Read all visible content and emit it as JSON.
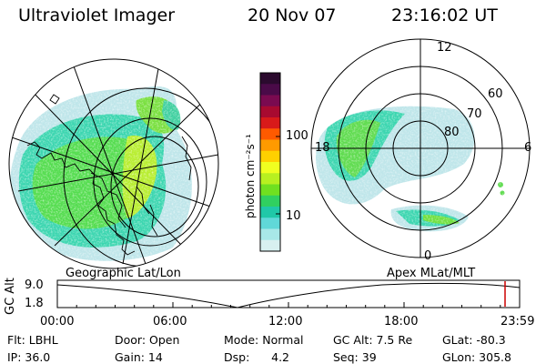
{
  "header": {
    "instrument": "Ultraviolet Imager",
    "date": "20 Nov 07",
    "time": "23:16:02 UT"
  },
  "colorbar": {
    "unit_label": "photon cm⁻²s⁻¹",
    "ticks": [
      "100",
      "10"
    ],
    "colors": [
      "#2b0a2e",
      "#4a0a48",
      "#7a0a50",
      "#a80a30",
      "#d81a1a",
      "#ff5a00",
      "#ff9a00",
      "#ffd000",
      "#f0ff20",
      "#b8f020",
      "#70e020",
      "#30d060",
      "#20c8a8",
      "#60d8d8",
      "#a8e8e8",
      "#d8f0f0"
    ]
  },
  "left_panel": {
    "caption": "Geographic Lat/Lon"
  },
  "right_panel": {
    "caption": "Apex MLat/MLT",
    "mlt_labels": {
      "top": "12",
      "left": "18",
      "right": "6",
      "bottom": "0"
    },
    "lat_labels": [
      "60",
      "70",
      "80"
    ]
  },
  "alt_plot": {
    "ylabel": "GC Alt",
    "yticks": [
      "9.0",
      "1.8"
    ],
    "xticks": [
      "00:00",
      "06:00",
      "12:00",
      "18:00",
      "23:59"
    ],
    "marker_color": "#cc0000"
  },
  "info": {
    "flt": "Flt: LBHL",
    "door": "Door: Open",
    "mode": "Mode: Normal",
    "gcalt": "GC Alt: 7.5 Re",
    "glat": "GLat: -80.3",
    "ip": "IP: 36.0",
    "gain": "Gain: 14",
    "dsp": "Dsp:      4.2",
    "seq": "Seq: 39",
    "glon": "GLon: 305.8"
  }
}
